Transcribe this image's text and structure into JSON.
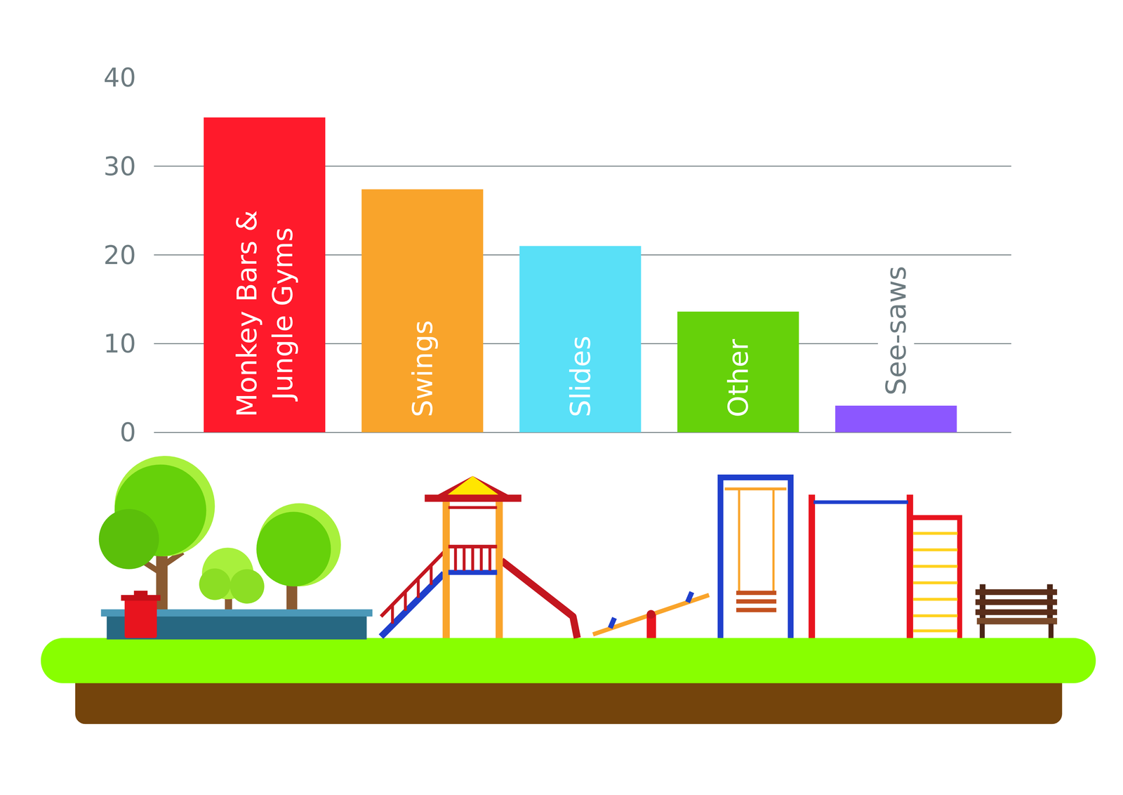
{
  "chart_data": {
    "type": "bar",
    "categories": [
      "Monkey Bars & Jungle Gyms",
      "Swings",
      "Slides",
      "Other",
      "See-saws"
    ],
    "values": [
      35.5,
      27.4,
      21,
      13.6,
      3
    ],
    "colors": [
      "#ff1a2b",
      "#f9a42b",
      "#59e0f7",
      "#66d10a",
      "#8c57ff"
    ],
    "ylim": [
      0,
      40
    ],
    "yticks": [
      0,
      10,
      20,
      30,
      40
    ],
    "grid": true,
    "tick_labels": "y"
  }
}
